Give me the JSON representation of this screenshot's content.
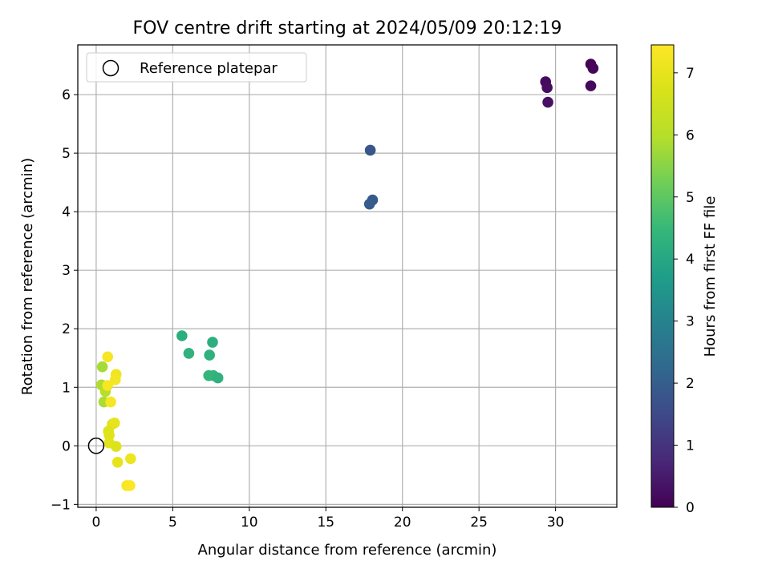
{
  "chart_data": {
    "type": "scatter",
    "title": "FOV centre drift starting at 2024/05/09 20:12:19",
    "xlabel": "Angular distance from reference (arcmin)",
    "ylabel": "Rotation from reference (arcmin)",
    "xlim": [
      -1.2,
      34
    ],
    "ylim": [
      -1.05,
      6.85
    ],
    "xticks": [
      0,
      5,
      10,
      15,
      20,
      25,
      30
    ],
    "yticks": [
      -1,
      0,
      1,
      2,
      3,
      4,
      5,
      6
    ],
    "grid": true,
    "legend": {
      "placement": "upper-left",
      "entries": [
        {
          "label": "Reference platepar",
          "marker": "open-circle"
        }
      ]
    },
    "reference_point": {
      "x": 0,
      "y": 0
    },
    "colorbar": {
      "label": "Hours from first FF file",
      "colormap": "viridis",
      "range": [
        0,
        7.45
      ],
      "ticks": [
        0,
        1,
        2,
        3,
        4,
        5,
        6,
        7
      ]
    },
    "points": [
      {
        "x": 32.3,
        "y": 6.52,
        "hours": 0.05
      },
      {
        "x": 32.45,
        "y": 6.45,
        "hours": 0.1
      },
      {
        "x": 29.35,
        "y": 6.22,
        "hours": 0.2
      },
      {
        "x": 29.45,
        "y": 6.12,
        "hours": 0.25
      },
      {
        "x": 32.3,
        "y": 6.15,
        "hours": 0.15
      },
      {
        "x": 29.5,
        "y": 5.87,
        "hours": 0.3
      },
      {
        "x": 17.9,
        "y": 5.05,
        "hours": 1.8
      },
      {
        "x": 18.05,
        "y": 4.2,
        "hours": 1.9
      },
      {
        "x": 17.85,
        "y": 4.13,
        "hours": 1.95
      },
      {
        "x": 5.6,
        "y": 1.88,
        "hours": 4.2
      },
      {
        "x": 6.05,
        "y": 1.58,
        "hours": 4.3
      },
      {
        "x": 7.6,
        "y": 1.77,
        "hours": 4.2
      },
      {
        "x": 7.4,
        "y": 1.55,
        "hours": 4.3
      },
      {
        "x": 7.35,
        "y": 1.2,
        "hours": 4.4
      },
      {
        "x": 7.65,
        "y": 1.2,
        "hours": 4.4
      },
      {
        "x": 7.95,
        "y": 1.16,
        "hours": 4.3
      },
      {
        "x": 0.4,
        "y": 1.35,
        "hours": 5.8
      },
      {
        "x": 0.35,
        "y": 1.04,
        "hours": 5.9
      },
      {
        "x": 0.5,
        "y": 0.75,
        "hours": 5.85
      },
      {
        "x": 0.6,
        "y": 0.93,
        "hours": 6.0
      },
      {
        "x": 0.75,
        "y": 1.52,
        "hours": 7.3
      },
      {
        "x": 1.3,
        "y": 1.22,
        "hours": 7.2
      },
      {
        "x": 1.25,
        "y": 1.13,
        "hours": 7.25
      },
      {
        "x": 0.75,
        "y": 1.03,
        "hours": 7.3
      },
      {
        "x": 0.95,
        "y": 0.75,
        "hours": 7.3
      },
      {
        "x": 1.05,
        "y": 0.37,
        "hours": 6.9
      },
      {
        "x": 1.2,
        "y": 0.39,
        "hours": 7.0
      },
      {
        "x": 0.8,
        "y": 0.25,
        "hours": 6.8
      },
      {
        "x": 0.85,
        "y": 0.18,
        "hours": 6.85
      },
      {
        "x": 0.85,
        "y": 0.05,
        "hours": 6.9
      },
      {
        "x": 1.3,
        "y": -0.01,
        "hours": 6.8
      },
      {
        "x": 1.4,
        "y": -0.28,
        "hours": 7.0
      },
      {
        "x": 2.25,
        "y": -0.22,
        "hours": 7.1
      },
      {
        "x": 2.0,
        "y": -0.68,
        "hours": 7.35
      },
      {
        "x": 2.2,
        "y": -0.68,
        "hours": 7.4
      }
    ]
  }
}
